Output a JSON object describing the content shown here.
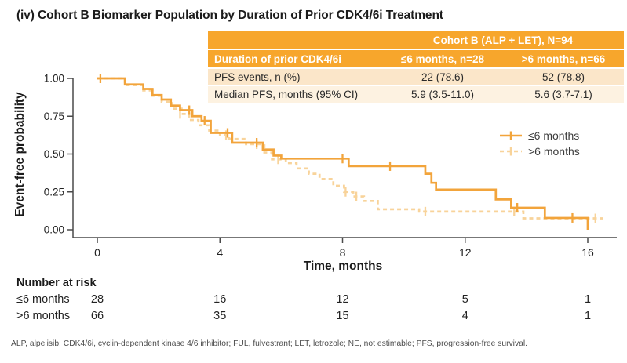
{
  "title": "(iv) Cohort B Biomarker Population by Duration of Prior CDK4/6i Treatment",
  "summary_table": {
    "header": "Cohort B (ALP + LET), N=94",
    "columns": [
      "Duration of prior CDK4/6i",
      "≤6 months, n=28",
      ">6 months, n=66"
    ],
    "rows": [
      {
        "label": "PFS events, n (%)",
        "le6": "22 (78.6)",
        "gt6": "52 (78.8)"
      },
      {
        "label": "Median PFS, months (95% CI)",
        "le6": "5.9 (3.5-11.0)",
        "gt6": "5.6 (3.7-7.1)"
      }
    ],
    "header_bg": "#F7A62C",
    "row_bg_odd": "#FBE6C9",
    "row_bg_even": "#FDF2E1"
  },
  "chart_data": {
    "type": "line",
    "subtype": "kaplan-meier-step",
    "title": "(iv) Cohort B Biomarker Population by Duration of Prior CDK4/6i Treatment",
    "xlabel": "Time, months",
    "ylabel": "Event-free probability",
    "xlim": [
      0,
      17
    ],
    "ylim": [
      0,
      1.0
    ],
    "grid": false,
    "legend_position": "right-middle",
    "axis_color": "#4a4a4a",
    "xticks": [
      {
        "v": 0,
        "label": "0"
      },
      {
        "v": 4,
        "label": "4"
      },
      {
        "v": 8,
        "label": "8"
      },
      {
        "v": 12,
        "label": "12"
      },
      {
        "v": 16,
        "label": "16"
      }
    ],
    "yticks": [
      {
        "v": 1.0,
        "label": "1.00"
      },
      {
        "v": 0.75,
        "label": "0.75"
      },
      {
        "v": 0.5,
        "label": "0.50"
      },
      {
        "v": 0.25,
        "label": "0.25"
      },
      {
        "v": 0.0,
        "label": "0.00"
      }
    ],
    "series": [
      {
        "name": ">6 months",
        "color": "#F8D39A",
        "style": "dashed",
        "points": [
          [
            0,
            1.0
          ],
          [
            0.9,
            0.955
          ],
          [
            1.5,
            0.92
          ],
          [
            1.8,
            0.885
          ],
          [
            2.1,
            0.845
          ],
          [
            2.45,
            0.8
          ],
          [
            2.75,
            0.765
          ],
          [
            3.0,
            0.725
          ],
          [
            3.3,
            0.69
          ],
          [
            3.65,
            0.655
          ],
          [
            4.0,
            0.625
          ],
          [
            4.3,
            0.6
          ],
          [
            4.85,
            0.565
          ],
          [
            5.45,
            0.51
          ],
          [
            5.7,
            0.465
          ],
          [
            6.15,
            0.44
          ],
          [
            6.5,
            0.405
          ],
          [
            6.9,
            0.37
          ],
          [
            7.25,
            0.335
          ],
          [
            7.7,
            0.29
          ],
          [
            8.05,
            0.25
          ],
          [
            8.35,
            0.22
          ],
          [
            8.7,
            0.19
          ],
          [
            9.15,
            0.135
          ],
          [
            10.5,
            0.12
          ],
          [
            13.9,
            0.075
          ],
          [
            16.5,
            0.075
          ]
        ],
        "censors": [
          [
            2.7,
            0.765
          ],
          [
            4.2,
            0.625
          ],
          [
            5.2,
            0.565
          ],
          [
            5.9,
            0.465
          ],
          [
            8.1,
            0.25
          ],
          [
            8.45,
            0.22
          ],
          [
            10.7,
            0.12
          ],
          [
            13.6,
            0.12
          ],
          [
            16.25,
            0.075
          ]
        ]
      },
      {
        "name": "≤6 months",
        "color": "#F2A43B",
        "style": "solid",
        "points": [
          [
            0,
            1.0
          ],
          [
            0.9,
            0.96
          ],
          [
            1.5,
            0.93
          ],
          [
            1.8,
            0.89
          ],
          [
            2.1,
            0.86
          ],
          [
            2.4,
            0.82
          ],
          [
            2.7,
            0.79
          ],
          [
            3.1,
            0.75
          ],
          [
            3.4,
            0.72
          ],
          [
            3.7,
            0.64
          ],
          [
            4.4,
            0.575
          ],
          [
            5.4,
            0.53
          ],
          [
            5.75,
            0.49
          ],
          [
            6.0,
            0.47
          ],
          [
            8.2,
            0.42
          ],
          [
            10.7,
            0.37
          ],
          [
            10.9,
            0.31
          ],
          [
            11.05,
            0.265
          ],
          [
            13.0,
            0.2
          ],
          [
            13.5,
            0.145
          ],
          [
            14.6,
            0.078
          ],
          [
            16.0,
            0.0
          ]
        ],
        "censors": [
          [
            0.1,
            1.0
          ],
          [
            3.0,
            0.79
          ],
          [
            3.5,
            0.72
          ],
          [
            4.25,
            0.64
          ],
          [
            5.2,
            0.575
          ],
          [
            8.0,
            0.47
          ],
          [
            9.55,
            0.42
          ],
          [
            13.7,
            0.145
          ],
          [
            15.5,
            0.078
          ]
        ]
      }
    ],
    "legend_order": [
      1,
      0
    ]
  },
  "risk_table": {
    "title": "Number at risk",
    "times": [
      0,
      4,
      8,
      12,
      16
    ],
    "rows": [
      {
        "label": "≤6 months",
        "values": [
          "28",
          "16",
          "12",
          "5",
          "1"
        ]
      },
      {
        "label": ">6 months",
        "values": [
          "66",
          "35",
          "15",
          "4",
          "1"
        ]
      }
    ]
  },
  "footnote": "ALP, alpelisib; CDK4/6i, cyclin-dependent kinase 4/6 inhibitor; FUL, fulvestrant; LET, letrozole; NE, not estimable; PFS, progression-free survival."
}
